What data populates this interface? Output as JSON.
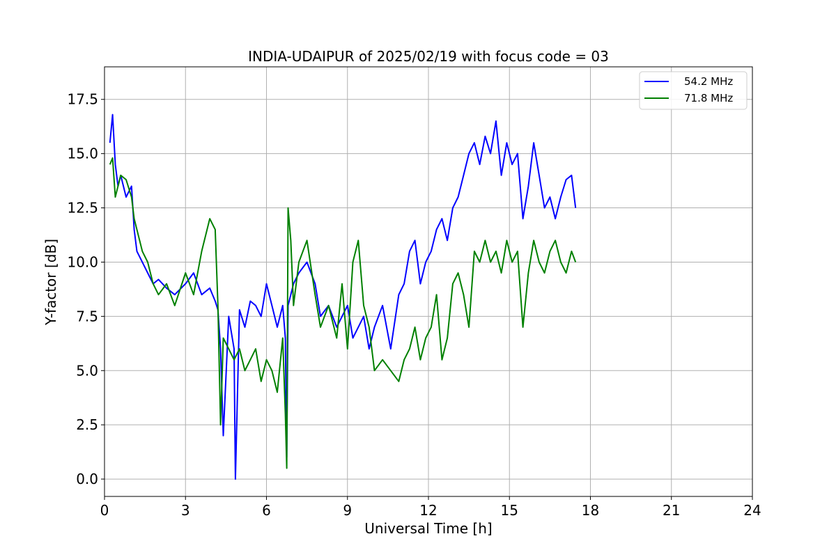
{
  "chart_data": {
    "type": "line",
    "title": "INDIA-UDAIPUR of 2025/02/19 with focus code = 03",
    "xlabel": "Universal Time [h]",
    "ylabel": "Y-factor [dB]",
    "xlim": [
      0,
      24
    ],
    "ylim": [
      -0.8,
      19.0
    ],
    "xticks": [
      0,
      3,
      6,
      9,
      12,
      15,
      18,
      21,
      24
    ],
    "xtick_labels": [
      "0",
      "3",
      "6",
      "9",
      "12",
      "15",
      "18",
      "21",
      "24"
    ],
    "yticks": [
      0.0,
      2.5,
      5.0,
      7.5,
      10.0,
      12.5,
      15.0,
      17.5
    ],
    "ytick_labels": [
      "0.0",
      "2.5",
      "5.0",
      "7.5",
      "10.0",
      "12.5",
      "15.0",
      "17.5"
    ],
    "grid": true,
    "legend": "top-right",
    "series": [
      {
        "name": "54.2 MHz",
        "color": "#0000ff",
        "x": [
          0.2,
          0.3,
          0.4,
          0.5,
          0.6,
          0.8,
          1.0,
          1.1,
          1.2,
          1.4,
          1.6,
          1.8,
          2.0,
          2.3,
          2.6,
          3.0,
          3.3,
          3.6,
          3.9,
          4.1,
          4.2,
          4.3,
          4.4,
          4.6,
          4.8,
          4.85,
          5.0,
          5.2,
          5.4,
          5.6,
          5.8,
          6.0,
          6.2,
          6.4,
          6.6,
          6.7,
          6.75,
          6.8,
          6.9,
          7.0,
          7.2,
          7.5,
          7.8,
          8.0,
          8.3,
          8.6,
          8.8,
          9.0,
          9.2,
          9.4,
          9.6,
          9.8,
          10.0,
          10.3,
          10.6,
          10.9,
          11.1,
          11.3,
          11.5,
          11.7,
          11.9,
          12.1,
          12.3,
          12.5,
          12.7,
          12.9,
          13.1,
          13.3,
          13.5,
          13.7,
          13.9,
          14.1,
          14.3,
          14.5,
          14.7,
          14.9,
          15.1,
          15.3,
          15.5,
          15.7,
          15.9,
          16.1,
          16.3,
          16.5,
          16.7,
          16.9,
          17.1,
          17.3,
          17.45
        ],
        "y": [
          15.5,
          16.8,
          14.5,
          13.5,
          14.0,
          13.0,
          13.5,
          11.5,
          10.5,
          10.0,
          9.5,
          9.0,
          9.2,
          8.8,
          8.5,
          9.0,
          9.5,
          8.5,
          8.8,
          8.2,
          7.8,
          6.0,
          2.0,
          7.5,
          6.0,
          0.0,
          7.8,
          7.0,
          8.2,
          8.0,
          7.5,
          9.0,
          8.0,
          7.0,
          8.0,
          6.5,
          1.0,
          8.0,
          8.5,
          9.0,
          9.5,
          10.0,
          9.0,
          7.5,
          8.0,
          7.0,
          7.5,
          8.0,
          6.5,
          7.0,
          7.5,
          6.0,
          7.0,
          8.0,
          6.0,
          8.5,
          9.0,
          10.5,
          11.0,
          9.0,
          10.0,
          10.5,
          11.5,
          12.0,
          11.0,
          12.5,
          13.0,
          14.0,
          15.0,
          15.5,
          14.5,
          15.8,
          15.0,
          16.5,
          14.0,
          15.5,
          14.5,
          15.0,
          12.0,
          13.5,
          15.5,
          14.0,
          12.5,
          13.0,
          12.0,
          13.0,
          13.8,
          14.0,
          12.5
        ]
      },
      {
        "name": "71.8 MHz",
        "color": "#008000",
        "x": [
          0.2,
          0.3,
          0.4,
          0.5,
          0.6,
          0.8,
          1.0,
          1.1,
          1.2,
          1.4,
          1.6,
          1.8,
          2.0,
          2.3,
          2.6,
          3.0,
          3.3,
          3.6,
          3.9,
          4.1,
          4.2,
          4.3,
          4.4,
          4.6,
          4.8,
          5.0,
          5.2,
          5.4,
          5.6,
          5.8,
          6.0,
          6.2,
          6.4,
          6.6,
          6.7,
          6.75,
          6.8,
          6.9,
          7.0,
          7.2,
          7.5,
          7.8,
          8.0,
          8.3,
          8.6,
          8.8,
          9.0,
          9.2,
          9.4,
          9.6,
          9.8,
          10.0,
          10.3,
          10.6,
          10.9,
          11.1,
          11.3,
          11.5,
          11.7,
          11.9,
          12.1,
          12.3,
          12.5,
          12.7,
          12.9,
          13.1,
          13.3,
          13.5,
          13.7,
          13.9,
          14.1,
          14.3,
          14.5,
          14.7,
          14.9,
          15.1,
          15.3,
          15.5,
          15.7,
          15.9,
          16.1,
          16.3,
          16.5,
          16.7,
          16.9,
          17.1,
          17.3,
          17.45
        ],
        "y": [
          14.5,
          14.8,
          13.0,
          13.5,
          14.0,
          13.8,
          13.0,
          12.0,
          11.5,
          10.5,
          10.0,
          9.0,
          8.5,
          9.0,
          8.0,
          9.5,
          8.5,
          10.5,
          12.0,
          11.5,
          8.0,
          2.5,
          6.5,
          6.0,
          5.5,
          6.0,
          5.0,
          5.5,
          6.0,
          4.5,
          5.5,
          5.0,
          4.0,
          6.5,
          3.0,
          0.5,
          12.5,
          11.0,
          8.0,
          10.0,
          11.0,
          8.5,
          7.0,
          8.0,
          6.5,
          9.0,
          6.0,
          10.0,
          11.0,
          8.0,
          7.0,
          5.0,
          5.5,
          5.0,
          4.5,
          5.5,
          6.0,
          7.0,
          5.5,
          6.5,
          7.0,
          8.5,
          5.5,
          6.5,
          9.0,
          9.5,
          8.5,
          7.0,
          10.5,
          10.0,
          11.0,
          10.0,
          10.5,
          9.5,
          11.0,
          10.0,
          10.5,
          7.0,
          9.5,
          11.0,
          10.0,
          9.5,
          10.5,
          11.0,
          10.0,
          9.5,
          10.5,
          10.0
        ]
      }
    ]
  }
}
